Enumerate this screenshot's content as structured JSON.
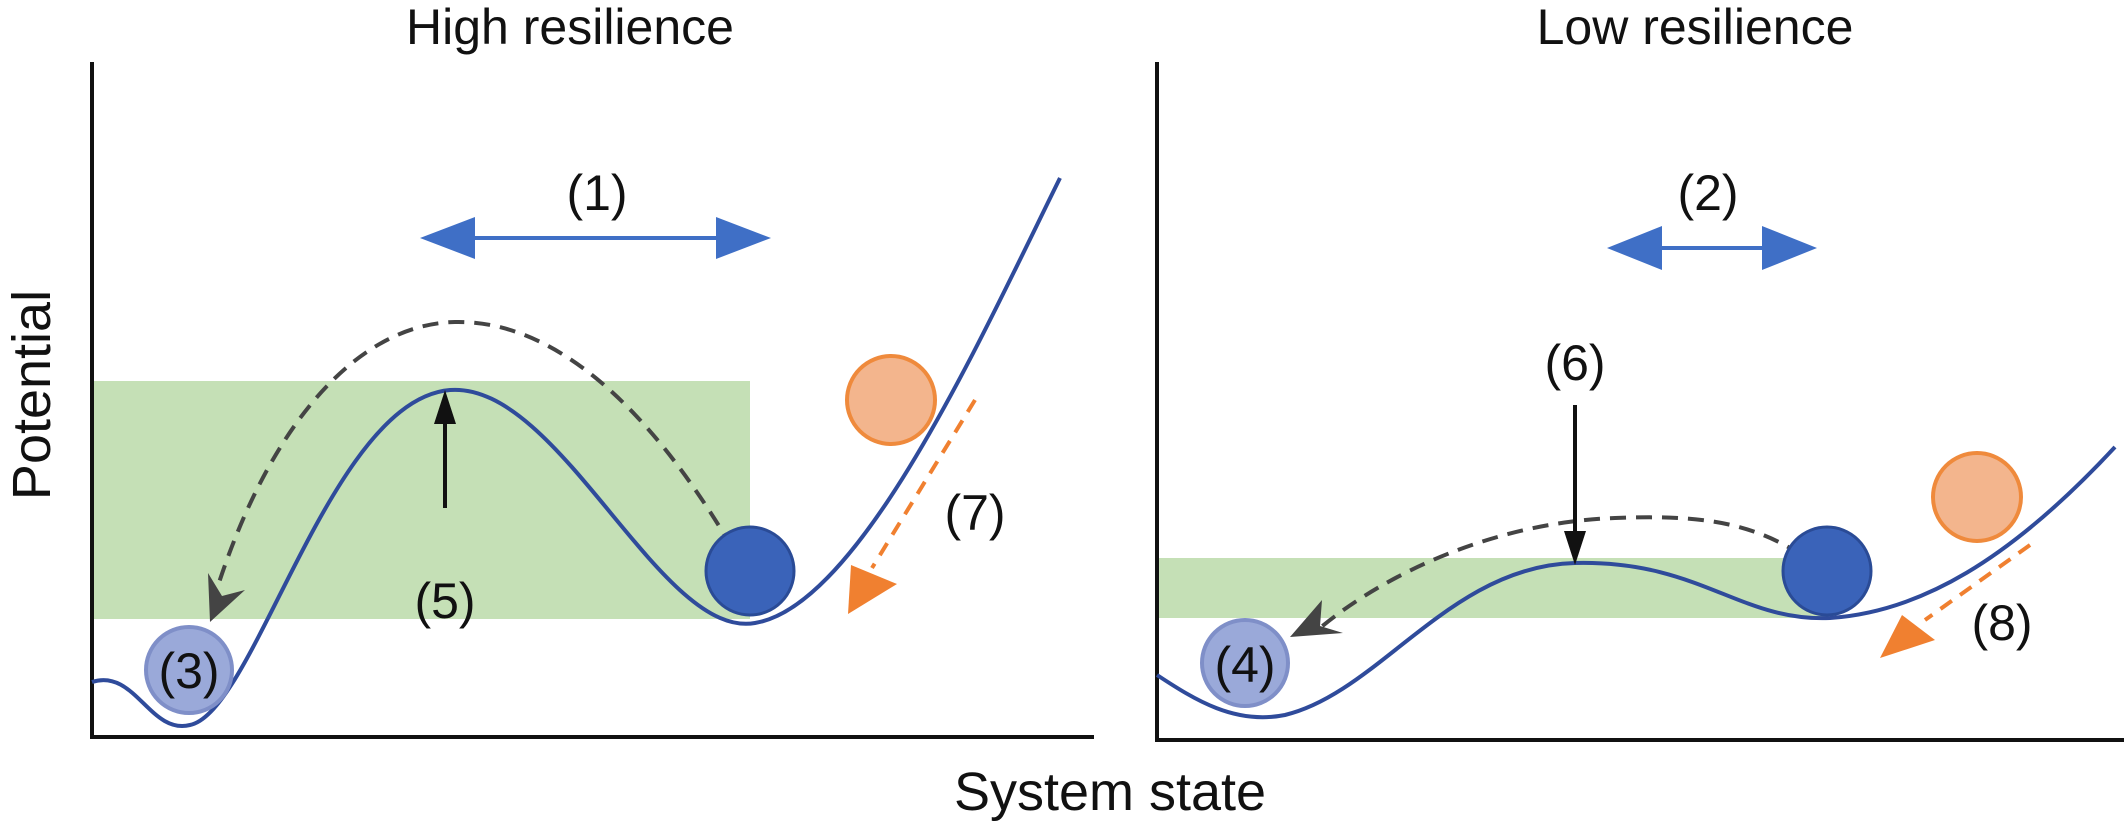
{
  "left_panel": {
    "title": "High resilience",
    "label_1": "(1)",
    "label_3": "(3)",
    "label_5": "(5)",
    "label_7": "(7)"
  },
  "right_panel": {
    "title": "Low resilience",
    "label_2": "(2)",
    "label_4": "(4)",
    "label_6": "(6)",
    "label_8": "(8)"
  },
  "axes": {
    "y_label": "Potential",
    "x_label": "System state"
  },
  "colors": {
    "curve": "#2f4b9b",
    "ball_dark": "#3a63b9",
    "ball_light": "#9aa9d9",
    "ball_orange": "#f3b58d",
    "arrow_blue": "#3f6fc6",
    "arrow_orange": "#f08030",
    "basin_green": "#c5e0b6",
    "dashed_path": "#444444"
  }
}
